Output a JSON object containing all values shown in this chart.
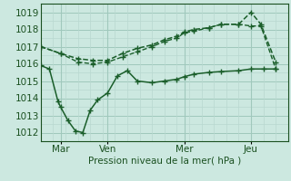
{
  "title": "Pression niveau de la mer( hPa )",
  "bg_color": "#cce8e0",
  "grid_color_major": "#a0c8bc",
  "grid_color_minor": "#b8d8d0",
  "line_color": "#1a5e2a",
  "xlim": [
    0,
    10.0
  ],
  "ylim": [
    1011.5,
    1019.5
  ],
  "yticks": [
    1012,
    1013,
    1014,
    1015,
    1016,
    1017,
    1018,
    1019
  ],
  "xtick_labels": [
    "Mar",
    "Ven",
    "Mer",
    "Jeu"
  ],
  "xtick_positions": [
    0.8,
    2.7,
    5.8,
    8.5
  ],
  "vlines": [
    0.8,
    2.7,
    5.8,
    8.5
  ],
  "series1_x": [
    0.0,
    0.8,
    1.5,
    2.1,
    2.7,
    3.3,
    3.9,
    4.5,
    5.0,
    5.5,
    5.8,
    6.2,
    6.8,
    7.3,
    8.0,
    8.5,
    8.9,
    9.5
  ],
  "series1_y": [
    1017.0,
    1016.6,
    1016.3,
    1016.2,
    1016.2,
    1016.6,
    1016.9,
    1017.1,
    1017.4,
    1017.6,
    1017.85,
    1018.0,
    1018.1,
    1018.3,
    1018.3,
    1019.0,
    1018.3,
    1016.1
  ],
  "series2_x": [
    0.0,
    0.8,
    1.5,
    2.1,
    2.7,
    3.3,
    3.9,
    4.5,
    5.0,
    5.5,
    5.8,
    6.2,
    6.8,
    7.3,
    8.0,
    8.5,
    8.9,
    9.5
  ],
  "series2_y": [
    1017.0,
    1016.6,
    1016.1,
    1016.0,
    1016.1,
    1016.4,
    1016.7,
    1017.0,
    1017.3,
    1017.5,
    1017.8,
    1017.9,
    1018.1,
    1018.3,
    1018.3,
    1018.2,
    1018.2,
    1015.7
  ],
  "series3_x": [
    0.0,
    0.35,
    0.7,
    0.8,
    1.1,
    1.4,
    1.7,
    2.0,
    2.3,
    2.7,
    3.1,
    3.5,
    3.9,
    4.5,
    5.0,
    5.5,
    5.8,
    6.2,
    6.8,
    7.3,
    8.0,
    8.5,
    9.0,
    9.5
  ],
  "series3_y": [
    1015.9,
    1015.7,
    1013.8,
    1013.5,
    1012.7,
    1012.1,
    1012.0,
    1013.3,
    1013.9,
    1014.3,
    1015.3,
    1015.6,
    1015.0,
    1014.9,
    1015.0,
    1015.1,
    1015.25,
    1015.4,
    1015.5,
    1015.55,
    1015.6,
    1015.7,
    1015.7,
    1015.7
  ],
  "ylabel_fontsize": 7.5,
  "tick_fontsize": 7.5,
  "text_color": "#1a5020"
}
